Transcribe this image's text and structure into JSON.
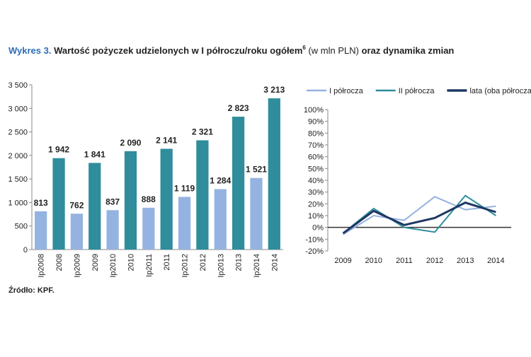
{
  "header": {
    "label": "Wykres 3.",
    "title": "Wartość pożyczek udzielonych w I półroczu/roku ogółem",
    "footnote": "6",
    "unit": "(w mln PLN)",
    "title_end": "oraz dynamika zmian"
  },
  "source": "Źródło: KPF.",
  "chart_data": [
    {
      "type": "bar",
      "categories": [
        "Ip2008",
        "2008",
        "Ip2009",
        "2009",
        "Ip2010",
        "2010",
        "Ip2011",
        "2011",
        "Ip2012",
        "2012",
        "Ip2013",
        "2013",
        "Ip2014",
        "2014"
      ],
      "values": [
        813,
        1942,
        762,
        1841,
        837,
        2090,
        888,
        2141,
        1119,
        2321,
        1284,
        2823,
        1521,
        3213
      ],
      "value_labels": [
        "813",
        "1 942",
        "762",
        "1 841",
        "837",
        "2 090",
        "888",
        "2 141",
        "1 119",
        "2 321",
        "1 284",
        "2 823",
        "1 521",
        "3 213"
      ],
      "colors": [
        "#95b3e0",
        "#2f8d9c",
        "#95b3e0",
        "#2f8d9c",
        "#95b3e0",
        "#2f8d9c",
        "#95b3e0",
        "#2f8d9c",
        "#95b3e0",
        "#2f8d9c",
        "#95b3e0",
        "#2f8d9c",
        "#95b3e0",
        "#2f8d9c"
      ],
      "ylim": [
        0,
        3500
      ],
      "yticks": [
        0,
        500,
        {
          "value": 1000,
          "label": "1 000"
        },
        {
          "value": 1500,
          "label": "1 500"
        },
        {
          "value": 2000,
          "label": "2 000"
        },
        {
          "value": 2500,
          "label": "2 500"
        },
        {
          "value": 3000,
          "label": "3 000"
        },
        {
          "value": 3500,
          "label": "3 500"
        }
      ],
      "grid": false
    },
    {
      "type": "line",
      "categories": [
        "2009",
        "2010",
        "2011",
        "2012",
        "2013",
        "2014"
      ],
      "series": [
        {
          "name": "I półrocza",
          "color": "#95b3e0",
          "values": [
            -6,
            10,
            6,
            26,
            15,
            18
          ]
        },
        {
          "name": "II półrocza",
          "color": "#2f8d9c",
          "values": [
            -5,
            16,
            0,
            -4,
            27,
            10
          ]
        },
        {
          "name": "lata (oba półrocza)",
          "color": "#1f3864",
          "values": [
            -5,
            14,
            2,
            8,
            21,
            13
          ]
        }
      ],
      "ylim": [
        -20,
        100
      ],
      "yticks": [
        {
          "value": -20,
          "label": "-20%"
        },
        {
          "value": -10,
          "label": "-10%"
        },
        {
          "value": 0,
          "label": "0%"
        },
        {
          "value": 10,
          "label": "10%"
        },
        {
          "value": 20,
          "label": "20%"
        },
        {
          "value": 30,
          "label": "30%"
        },
        {
          "value": 40,
          "label": "40%"
        },
        {
          "value": 50,
          "label": "50%"
        },
        {
          "value": 60,
          "label": "60%"
        },
        {
          "value": 70,
          "label": "70%"
        },
        {
          "value": 80,
          "label": "80%"
        },
        {
          "value": 90,
          "label": "90%"
        },
        {
          "value": 100,
          "label": "100%"
        }
      ],
      "grid": false,
      "legend": "top"
    }
  ]
}
